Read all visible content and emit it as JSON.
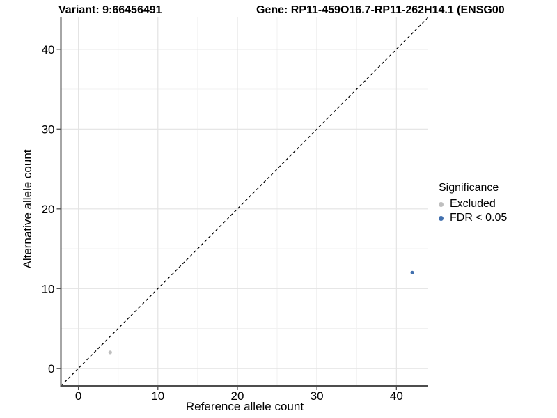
{
  "titles": {
    "variant": "Variant: 9:66456491",
    "gene": "Gene: RP11-459O16.7-RP11-262H14.1 (ENSG00"
  },
  "chart_data": {
    "type": "scatter",
    "xlabel": "Reference allele count",
    "ylabel": "Alternative allele count",
    "xlim": [
      -2.2,
      44
    ],
    "ylim": [
      -2.2,
      44
    ],
    "x_ticks": [
      0,
      10,
      20,
      30,
      40
    ],
    "y_ticks": [
      0,
      10,
      20,
      30,
      40
    ],
    "x_minor_ticks": [
      5,
      15,
      25,
      35
    ],
    "y_minor_ticks": [
      5,
      15,
      25,
      35
    ],
    "grid": true,
    "background": "#ffffff",
    "reference_line": {
      "equation": "y = x",
      "style": "dashed",
      "color": "#000000"
    },
    "series": [
      {
        "name": "Excluded",
        "color": "#bfbfbf",
        "points": [
          {
            "x": 4,
            "y": 2
          }
        ]
      },
      {
        "name": "FDR < 0.05",
        "color": "#4270ae",
        "points": [
          {
            "x": 42,
            "y": 12
          }
        ]
      }
    ],
    "legend": {
      "title": "Significance",
      "position": "right"
    }
  },
  "style_colors": {
    "axis_line": "#4d4d4d",
    "tick_mark": "#4d4d4d",
    "major_grid": "#e3e3e3",
    "minor_grid": "#f1f1f1",
    "tick_label": "#000000"
  }
}
